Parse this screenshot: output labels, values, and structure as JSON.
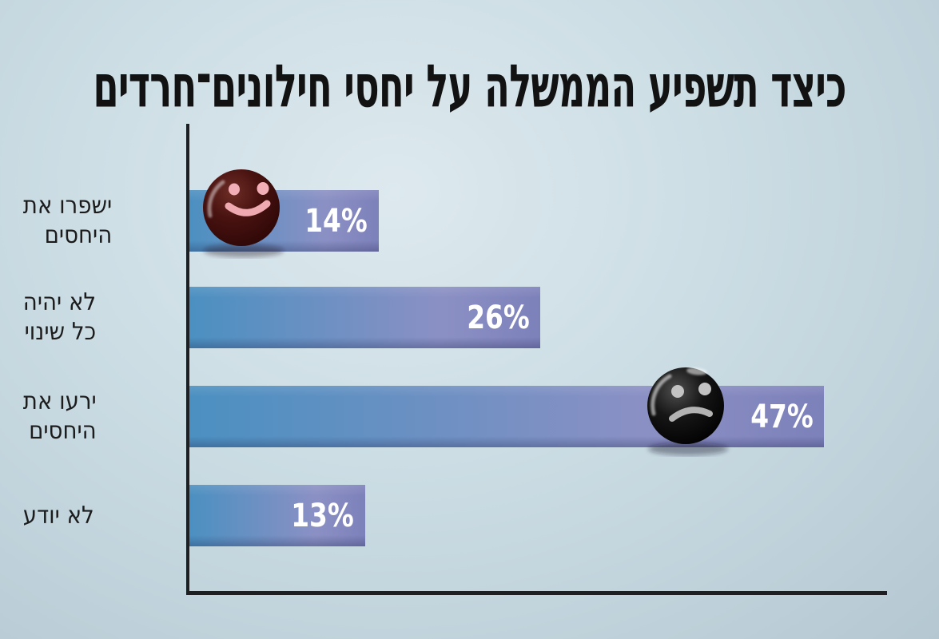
{
  "title": "כיצד תשפיע הממשלה על יחסי חילונים־חרדים",
  "chart_data": {
    "type": "bar",
    "orientation": "horizontal",
    "title": "כיצד תשפיע הממשלה על יחסי חילונים־חרדים",
    "categories": [
      "ישפרו את היחסים",
      "לא יהיה כל שינוי",
      "ירעו את היחסים",
      "לא יודע"
    ],
    "category_label_lines": [
      "ישפרו את\nהיחסים",
      "לא יהיה\nכל שינוי",
      "ירעו את\nהיחסים",
      "לא יודע"
    ],
    "values": [
      14,
      26,
      47,
      13
    ],
    "value_labels": [
      "14%",
      "26%",
      "47%",
      "13%"
    ],
    "xlim": [
      0,
      52
    ],
    "grid": false,
    "legend": false,
    "annotations": [
      {
        "icon": "happy-face",
        "on_bar": 0,
        "color": "#481210"
      },
      {
        "icon": "sad-face",
        "on_bar": 2,
        "color": "#0a0a0a"
      }
    ]
  },
  "colors": {
    "background_center": "#dde9ee",
    "background_edge": "#b5c8d2",
    "bar_gradient_start": "#4b90c1",
    "bar_gradient_end": "#7d81ba",
    "axis": "#1d1f22",
    "title_text": "#121212",
    "category_text": "#1c1c1c",
    "value_text": "#ffffff",
    "happy_face_ball": "#481210",
    "happy_face_features": "#f3afb7",
    "sad_face_ball": "#0a0a0a",
    "sad_face_features": "#c3c3c3"
  }
}
